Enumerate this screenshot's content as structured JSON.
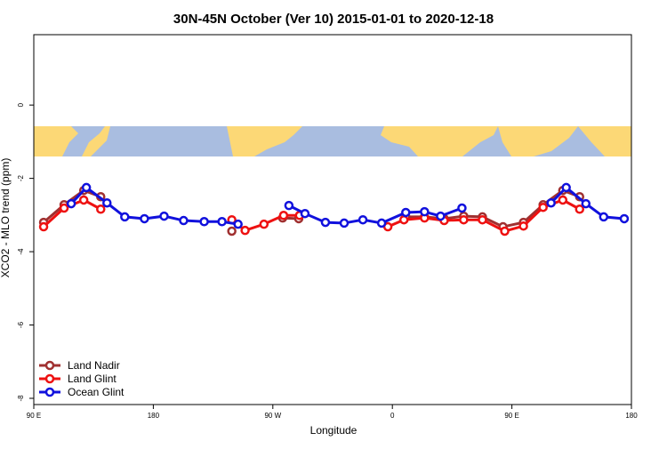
{
  "chart_data": {
    "type": "line",
    "title": "30N-45N October (Ver 10)   2015-01-01 to 2020-12-18",
    "x_label": "Longitude",
    "y_label": "XCO2 - MLO trend (ppm)",
    "xlim": [
      90,
      540
    ],
    "xticks": [
      {
        "value": 90,
        "label": "90 E"
      },
      180,
      {
        "value": 270,
        "label": "90 W"
      },
      {
        "value": 360,
        "label": "0"
      },
      {
        "value": 450,
        "label": "90 E"
      },
      {
        "value": 540,
        "label": "180"
      }
    ],
    "ylim": [
      -8.17,
      1.92
    ],
    "yticks": [
      0,
      -2,
      -4,
      -6,
      -8
    ],
    "legend": "bottom-left",
    "series": [
      {
        "name": "Land Nadir",
        "color": "#a03030",
        "x": [
          97.4,
          112.8,
          127.6,
          140.4,
          null,
          239.1,
          null,
          277.4,
          289.5,
          null,
          370.1,
          384.2,
          399.0,
          413.7,
          427.8,
          443.3,
          458.7,
          473.5,
          488.3,
          501.0
        ],
        "values": [
          -3.2,
          -2.72,
          -2.33,
          -2.5,
          null,
          -3.44,
          null,
          -3.08,
          -3.1,
          null,
          -3.05,
          -3.05,
          -3.1,
          -3.03,
          -3.05,
          -3.32,
          -3.2,
          -2.72,
          -2.33,
          -2.5
        ]
      },
      {
        "name": "Land Glint",
        "color": "#ee1111",
        "x": [
          97.4,
          112.8,
          127.6,
          140.4,
          null,
          239.1,
          249.1,
          263.3,
          278.1,
          290.1,
          null,
          356.6,
          368.7,
          384.2,
          399.0,
          413.7,
          427.8,
          444.6,
          458.7,
          473.5,
          488.3,
          501.0
        ],
        "values": [
          -3.32,
          -2.81,
          -2.59,
          -2.84,
          null,
          -3.13,
          -3.42,
          -3.25,
          -3.01,
          -3.01,
          null,
          -3.32,
          -3.13,
          -3.08,
          -3.15,
          -3.13,
          -3.13,
          -3.44,
          -3.3,
          -2.79,
          -2.59,
          -2.84
        ]
      },
      {
        "name": "Ocean Glint",
        "color": "#1111dd",
        "x": [
          118.2,
          129.6,
          145.1,
          158.5,
          173.3,
          188.1,
          202.8,
          218.3,
          231.7,
          243.8,
          null,
          282.1,
          294.2,
          309.6,
          323.7,
          337.8,
          351.9,
          370.1,
          384.2,
          396.3,
          412.4,
          null,
          479.5,
          490.9,
          505.7,
          519.1,
          534.6
        ],
        "values": [
          -2.69,
          -2.25,
          -2.67,
          -3.05,
          -3.1,
          -3.03,
          -3.15,
          -3.18,
          -3.18,
          -3.25,
          null,
          -2.74,
          -2.96,
          -3.2,
          -3.22,
          -3.13,
          -3.22,
          -2.93,
          -2.91,
          -3.03,
          -2.81,
          null,
          -2.67,
          -2.25,
          -2.69,
          -3.05,
          -3.1
        ]
      }
    ]
  }
}
